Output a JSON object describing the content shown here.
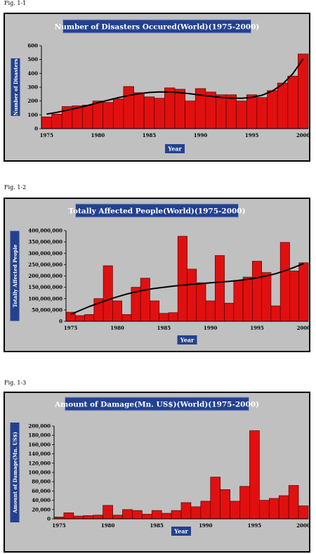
{
  "figures": [
    {
      "label": "Fig. 1-1"
    },
    {
      "label": "Fig. 1-2"
    },
    {
      "label": "Fig. 1-3"
    }
  ],
  "colors": {
    "panel_bg": "#c0c0c0",
    "bar_fill": "#e01010",
    "title_bg": "#23418f",
    "title_text": "#ffffff",
    "trend": "#000000"
  },
  "chart_data": [
    {
      "type": "bar",
      "title": "Number of Disasters Occured(World)(1975-2000)",
      "xlabel": "Year",
      "ylabel": "Number of Disasters",
      "ylim": [
        0,
        600
      ],
      "yticks": [
        "0",
        "100",
        "200",
        "300",
        "400",
        "500",
        "600"
      ],
      "xticks": [
        "1975",
        "1980",
        "1985",
        "1990",
        "1995",
        "2000"
      ],
      "categories": [
        "1975",
        "1976",
        "1977",
        "1978",
        "1979",
        "1980",
        "1981",
        "1982",
        "1983",
        "1984",
        "1985",
        "1986",
        "1987",
        "1988",
        "1989",
        "1990",
        "1991",
        "1992",
        "1993",
        "1994",
        "1995",
        "1996",
        "1997",
        "1998",
        "1999",
        "2000"
      ],
      "values": [
        85,
        105,
        160,
        165,
        170,
        200,
        190,
        215,
        305,
        260,
        230,
        220,
        295,
        285,
        200,
        290,
        265,
        245,
        245,
        200,
        245,
        225,
        275,
        330,
        380,
        540
      ],
      "trend": [
        105,
        118,
        133,
        150,
        168,
        187,
        206,
        224,
        240,
        253,
        262,
        266,
        265,
        260,
        252,
        243,
        234,
        226,
        221,
        220,
        226,
        242,
        272,
        322,
        398,
        505
      ],
      "grid": false
    },
    {
      "type": "bar",
      "title": "Totally Affected People(World)(1975-2000)",
      "xlabel": "Year",
      "ylabel": "Totally Affected People",
      "ylim": [
        0,
        400000000
      ],
      "yticks": [
        "0",
        "50,000,000",
        "100,000,000",
        "150,000,000",
        "200,000,000",
        "250,000,000",
        "300,000,000",
        "350,000,000",
        "400,000,000"
      ],
      "xticks": [
        "1975",
        "1980",
        "1985",
        "1990",
        "1995",
        "2000"
      ],
      "categories": [
        "1975",
        "1976",
        "1977",
        "1978",
        "1979",
        "1980",
        "1981",
        "1982",
        "1983",
        "1984",
        "1985",
        "1986",
        "1987",
        "1988",
        "1989",
        "1990",
        "1991",
        "1992",
        "1993",
        "1994",
        "1995",
        "1996",
        "1997",
        "1998",
        "1999",
        "2000"
      ],
      "values": [
        40000000,
        25000000,
        30000000,
        100000000,
        245000000,
        90000000,
        30000000,
        150000000,
        190000000,
        90000000,
        35000000,
        38000000,
        375000000,
        230000000,
        170000000,
        90000000,
        290000000,
        80000000,
        180000000,
        195000000,
        265000000,
        215000000,
        68000000,
        348000000,
        222000000,
        258000000
      ],
      "trend": [
        30000000,
        48000000,
        65000000,
        80000000,
        95000000,
        108000000,
        120000000,
        130000000,
        138000000,
        145000000,
        150000000,
        155000000,
        159000000,
        163000000,
        166000000,
        170000000,
        173000000,
        176000000,
        180000000,
        185000000,
        192000000,
        200000000,
        210000000,
        223000000,
        238000000,
        255000000
      ],
      "grid": false
    },
    {
      "type": "bar",
      "title": "Amount of Damage(Mn. US$)(World)(1975-2000)",
      "xlabel": "Year",
      "ylabel": "Amount of Damage(Mn. US$)",
      "ylim": [
        0,
        200000
      ],
      "yticks": [
        "0",
        "20,000",
        "40,000",
        "60,000",
        "80,000",
        "100,000",
        "120,000",
        "140,000",
        "160,000",
        "180,000",
        "200,000"
      ],
      "xticks": [
        "1975",
        "1980",
        "1985",
        "1990",
        "1995",
        "2000"
      ],
      "categories": [
        "1975",
        "1976",
        "1977",
        "1978",
        "1979",
        "1980",
        "1981",
        "1982",
        "1983",
        "1984",
        "1985",
        "1986",
        "1987",
        "1988",
        "1989",
        "1990",
        "1991",
        "1992",
        "1993",
        "1994",
        "1995",
        "1996",
        "1997",
        "1998",
        "1999",
        "2000"
      ],
      "values": [
        4000,
        13000,
        6000,
        7000,
        8000,
        29000,
        8000,
        20000,
        18000,
        10000,
        18000,
        12000,
        18000,
        35000,
        26000,
        38000,
        90000,
        63000,
        38000,
        70000,
        190000,
        40000,
        44000,
        50000,
        72000,
        28000
      ],
      "grid": false
    }
  ]
}
